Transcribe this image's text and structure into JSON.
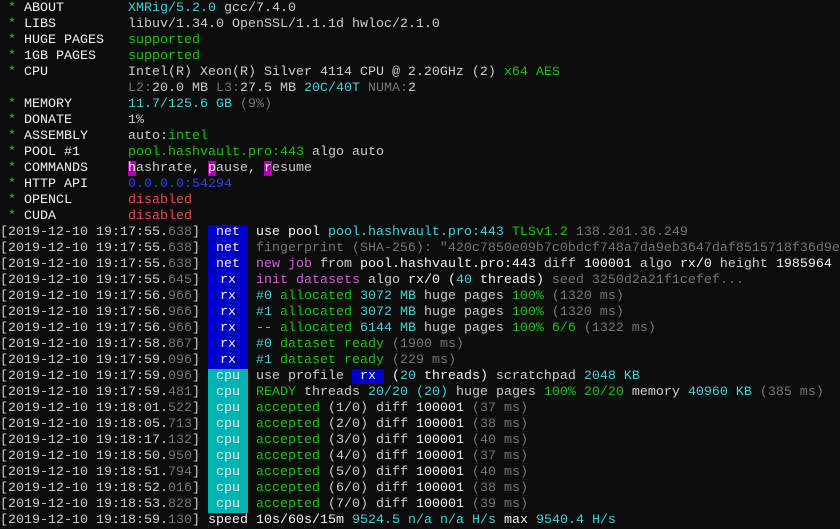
{
  "colors": {
    "w": "#cccccc",
    "W": "#f2f2f2",
    "g": "#16c60c",
    "c": "#3ad6d6",
    "d": "#767676",
    "M": "#d65fd6",
    "b": "#3b3bf0",
    "r": "#e74856",
    "hl": "#b400b4",
    "net": "#0000c8",
    "rx": "#0000c8",
    "cpu": "#00b4b4"
  },
  "summary": [
    {
      "label": "ABOUT",
      "segs": [
        {
          "t": "XMRig/5.2.0",
          "c": "c"
        },
        {
          "t": " gcc/7.4.0",
          "c": "w"
        }
      ]
    },
    {
      "label": "LIBS",
      "segs": [
        {
          "t": "libuv/1.34.0 OpenSSL/1.1.1d hwloc/2.1.0",
          "c": "w"
        }
      ]
    },
    {
      "label": "HUGE PAGES",
      "segs": [
        {
          "t": "supported",
          "c": "g"
        }
      ]
    },
    {
      "label": "1GB PAGES",
      "segs": [
        {
          "t": "supported",
          "c": "g"
        }
      ]
    },
    {
      "label": "CPU",
      "segs": [
        {
          "t": "Intel(R) Xeon(R) Silver 4114 CPU @ 2.20GHz (2)",
          "c": "w"
        },
        {
          "t": " x64 AES",
          "c": "g"
        }
      ]
    },
    {
      "label": "",
      "segs": [
        {
          "t": "L2:",
          "c": "d"
        },
        {
          "t": "20.0 MB ",
          "c": "w"
        },
        {
          "t": "L3:",
          "c": "d"
        },
        {
          "t": "27.5 MB ",
          "c": "w"
        },
        {
          "t": "20C/40T",
          "c": "c"
        },
        {
          "t": " NUMA:",
          "c": "d"
        },
        {
          "t": "2",
          "c": "w"
        }
      ]
    },
    {
      "label": "MEMORY",
      "segs": [
        {
          "t": "11.7/125.6 GB",
          "c": "c"
        },
        {
          "t": " (9%)",
          "c": "d"
        }
      ]
    },
    {
      "label": "DONATE",
      "segs": [
        {
          "t": "1%",
          "c": "w"
        }
      ]
    },
    {
      "label": "ASSEMBLY",
      "segs": [
        {
          "t": "auto:",
          "c": "w"
        },
        {
          "t": "intel",
          "c": "g"
        }
      ]
    },
    {
      "label": "POOL #1",
      "segs": [
        {
          "t": "pool.hashvault.pro:443",
          "c": "g"
        },
        {
          "t": " algo auto",
          "c": "w"
        }
      ]
    },
    {
      "label": "COMMANDS",
      "segs": [
        {
          "t": "h",
          "c": "hl"
        },
        {
          "t": "ashrate, ",
          "c": "w"
        },
        {
          "t": "p",
          "c": "hl"
        },
        {
          "t": "ause, ",
          "c": "w"
        },
        {
          "t": "r",
          "c": "hl"
        },
        {
          "t": "esume",
          "c": "w"
        }
      ]
    },
    {
      "label": "HTTP API",
      "segs": [
        {
          "t": "0.0.0.0:54294",
          "c": "b"
        }
      ]
    },
    {
      "label": "OPENCL",
      "segs": [
        {
          "t": "disabled",
          "c": "r"
        }
      ]
    },
    {
      "label": "CUDA",
      "segs": [
        {
          "t": "disabled",
          "c": "r"
        }
      ]
    }
  ],
  "log": [
    {
      "ts": "[2019-12-10 19:17:55.",
      "ms": "638",
      "tag": "net",
      "segs": [
        {
          "t": "use pool ",
          "c": "W"
        },
        {
          "t": "pool.hashvault.pro:443",
          "c": "c"
        },
        {
          "t": " ",
          "c": "w"
        },
        {
          "t": "TLSv1.2",
          "c": "g"
        },
        {
          "t": " 138.201.36.249",
          "c": "d"
        }
      ]
    },
    {
      "ts": "[2019-12-10 19:17:55.",
      "ms": "638",
      "tag": "net",
      "segs": [
        {
          "t": "fingerprint (SHA-256): \"420c7850e09b7c0bdcf748a7da9eb3647daf8515718f36d9e",
          "c": "d"
        }
      ]
    },
    {
      "ts": "[2019-12-10 19:17:55.",
      "ms": "638",
      "tag": "net",
      "segs": [
        {
          "t": "new job",
          "c": "M"
        },
        {
          "t": " from ",
          "c": "w"
        },
        {
          "t": "pool.hashvault.pro:443",
          "c": "W"
        },
        {
          "t": " diff ",
          "c": "w"
        },
        {
          "t": "100001",
          "c": "W"
        },
        {
          "t": " algo ",
          "c": "w"
        },
        {
          "t": "rx/0",
          "c": "W"
        },
        {
          "t": " height ",
          "c": "w"
        },
        {
          "t": "1985964",
          "c": "W"
        }
      ]
    },
    {
      "ts": "[2019-12-10 19:17:55.",
      "ms": "645",
      "tag": "rx",
      "segs": [
        {
          "t": "init datasets",
          "c": "M"
        },
        {
          "t": " algo ",
          "c": "w"
        },
        {
          "t": "rx/0",
          "c": "W"
        },
        {
          "t": " (",
          "c": "W"
        },
        {
          "t": "40",
          "c": "c"
        },
        {
          "t": " threads)",
          "c": "W"
        },
        {
          "t": " seed 3250d2a21f1cefef...",
          "c": "d"
        }
      ]
    },
    {
      "ts": "[2019-12-10 19:17:56.",
      "ms": "966",
      "tag": "rx",
      "segs": [
        {
          "t": "#0",
          "c": "c"
        },
        {
          "t": " allocated ",
          "c": "g"
        },
        {
          "t": "3072 MB",
          "c": "c"
        },
        {
          "t": " huge pages ",
          "c": "w"
        },
        {
          "t": "100%",
          "c": "g"
        },
        {
          "t": " (1320 ms)",
          "c": "d"
        }
      ]
    },
    {
      "ts": "[2019-12-10 19:17:56.",
      "ms": "966",
      "tag": "rx",
      "segs": [
        {
          "t": "#1",
          "c": "c"
        },
        {
          "t": " allocated ",
          "c": "g"
        },
        {
          "t": "3072 MB",
          "c": "c"
        },
        {
          "t": " huge pages ",
          "c": "w"
        },
        {
          "t": "100%",
          "c": "g"
        },
        {
          "t": " (1320 ms)",
          "c": "d"
        }
      ]
    },
    {
      "ts": "[2019-12-10 19:17:56.",
      "ms": "966",
      "tag": "rx",
      "segs": [
        {
          "t": "--",
          "c": "c"
        },
        {
          "t": " allocated ",
          "c": "g"
        },
        {
          "t": "6144 MB",
          "c": "c"
        },
        {
          "t": " huge pages ",
          "c": "w"
        },
        {
          "t": "100%",
          "c": "g"
        },
        {
          "t": " 6/6",
          "c": "g"
        },
        {
          "t": " (1322 ms)",
          "c": "d"
        }
      ]
    },
    {
      "ts": "[2019-12-10 19:17:58.",
      "ms": "867",
      "tag": "rx",
      "segs": [
        {
          "t": "#0",
          "c": "c"
        },
        {
          "t": " dataset ready",
          "c": "g"
        },
        {
          "t": " (1900 ms)",
          "c": "d"
        }
      ]
    },
    {
      "ts": "[2019-12-10 19:17:59.",
      "ms": "096",
      "tag": "rx",
      "segs": [
        {
          "t": "#1",
          "c": "c"
        },
        {
          "t": " dataset ready",
          "c": "g"
        },
        {
          "t": " (229 ms)",
          "c": "d"
        }
      ]
    },
    {
      "ts": "[2019-12-10 19:17:59.",
      "ms": "096",
      "tag": "cpu",
      "segs": [
        {
          "t": "use profile ",
          "c": "w"
        },
        {
          "t": " rx ",
          "c": "inl"
        },
        {
          "t": " (",
          "c": "W"
        },
        {
          "t": "20",
          "c": "c"
        },
        {
          "t": " threads)",
          "c": "W"
        },
        {
          "t": " scratchpad ",
          "c": "w"
        },
        {
          "t": "2048 KB",
          "c": "c"
        }
      ]
    },
    {
      "ts": "[2019-12-10 19:17:59.",
      "ms": "481",
      "tag": "cpu",
      "segs": [
        {
          "t": "READY",
          "c": "g"
        },
        {
          "t": " threads ",
          "c": "w"
        },
        {
          "t": "20/20",
          "c": "c"
        },
        {
          "t": " (20)",
          "c": "c"
        },
        {
          "t": " huge pages ",
          "c": "w"
        },
        {
          "t": "100%",
          "c": "g"
        },
        {
          "t": " 20/20",
          "c": "g"
        },
        {
          "t": " memory ",
          "c": "w"
        },
        {
          "t": "40960 KB",
          "c": "c"
        },
        {
          "t": " (385 ms)",
          "c": "d"
        }
      ]
    },
    {
      "ts": "[2019-12-10 19:18:01.",
      "ms": "522",
      "tag": "cpu",
      "segs": [
        {
          "t": "accepted",
          "c": "g"
        },
        {
          "t": " (1/0) diff ",
          "c": "w"
        },
        {
          "t": "100001",
          "c": "W"
        },
        {
          "t": " (37 ms)",
          "c": "d"
        }
      ]
    },
    {
      "ts": "[2019-12-10 19:18:05.",
      "ms": "713",
      "tag": "cpu",
      "segs": [
        {
          "t": "accepted",
          "c": "g"
        },
        {
          "t": " (2/0) diff ",
          "c": "w"
        },
        {
          "t": "100001",
          "c": "W"
        },
        {
          "t": " (38 ms)",
          "c": "d"
        }
      ]
    },
    {
      "ts": "[2019-12-10 19:18:17.",
      "ms": "132",
      "tag": "cpu",
      "segs": [
        {
          "t": "accepted",
          "c": "g"
        },
        {
          "t": " (3/0) diff ",
          "c": "w"
        },
        {
          "t": "100001",
          "c": "W"
        },
        {
          "t": " (40 ms)",
          "c": "d"
        }
      ]
    },
    {
      "ts": "[2019-12-10 19:18:50.",
      "ms": "950",
      "tag": "cpu",
      "segs": [
        {
          "t": "accepted",
          "c": "g"
        },
        {
          "t": " (4/0) diff ",
          "c": "w"
        },
        {
          "t": "100001",
          "c": "W"
        },
        {
          "t": " (37 ms)",
          "c": "d"
        }
      ]
    },
    {
      "ts": "[2019-12-10 19:18:51.",
      "ms": "794",
      "tag": "cpu",
      "segs": [
        {
          "t": "accepted",
          "c": "g"
        },
        {
          "t": " (5/0) diff ",
          "c": "w"
        },
        {
          "t": "100001",
          "c": "W"
        },
        {
          "t": " (40 ms)",
          "c": "d"
        }
      ]
    },
    {
      "ts": "[2019-12-10 19:18:52.",
      "ms": "016",
      "tag": "cpu",
      "segs": [
        {
          "t": "accepted",
          "c": "g"
        },
        {
          "t": " (6/0) diff ",
          "c": "w"
        },
        {
          "t": "100001",
          "c": "W"
        },
        {
          "t": " (38 ms)",
          "c": "d"
        }
      ]
    },
    {
      "ts": "[2019-12-10 19:18:53.",
      "ms": "828",
      "tag": "cpu",
      "segs": [
        {
          "t": "accepted",
          "c": "g"
        },
        {
          "t": " (7/0) diff ",
          "c": "w"
        },
        {
          "t": "100001",
          "c": "W"
        },
        {
          "t": " (39 ms)",
          "c": "d"
        }
      ]
    },
    {
      "ts": "[2019-12-10 19:18:59.",
      "ms": "130",
      "tag": "",
      "segs": [
        {
          "t": "speed",
          "c": "W"
        },
        {
          "t": " 10s/60s/15m ",
          "c": "W"
        },
        {
          "t": "9524.5",
          "c": "c"
        },
        {
          "t": " n/a n/a",
          "c": "c"
        },
        {
          "t": " H/s",
          "c": "c"
        },
        {
          "t": " max ",
          "c": "W"
        },
        {
          "t": "9540.4 H/s",
          "c": "c"
        }
      ]
    }
  ]
}
